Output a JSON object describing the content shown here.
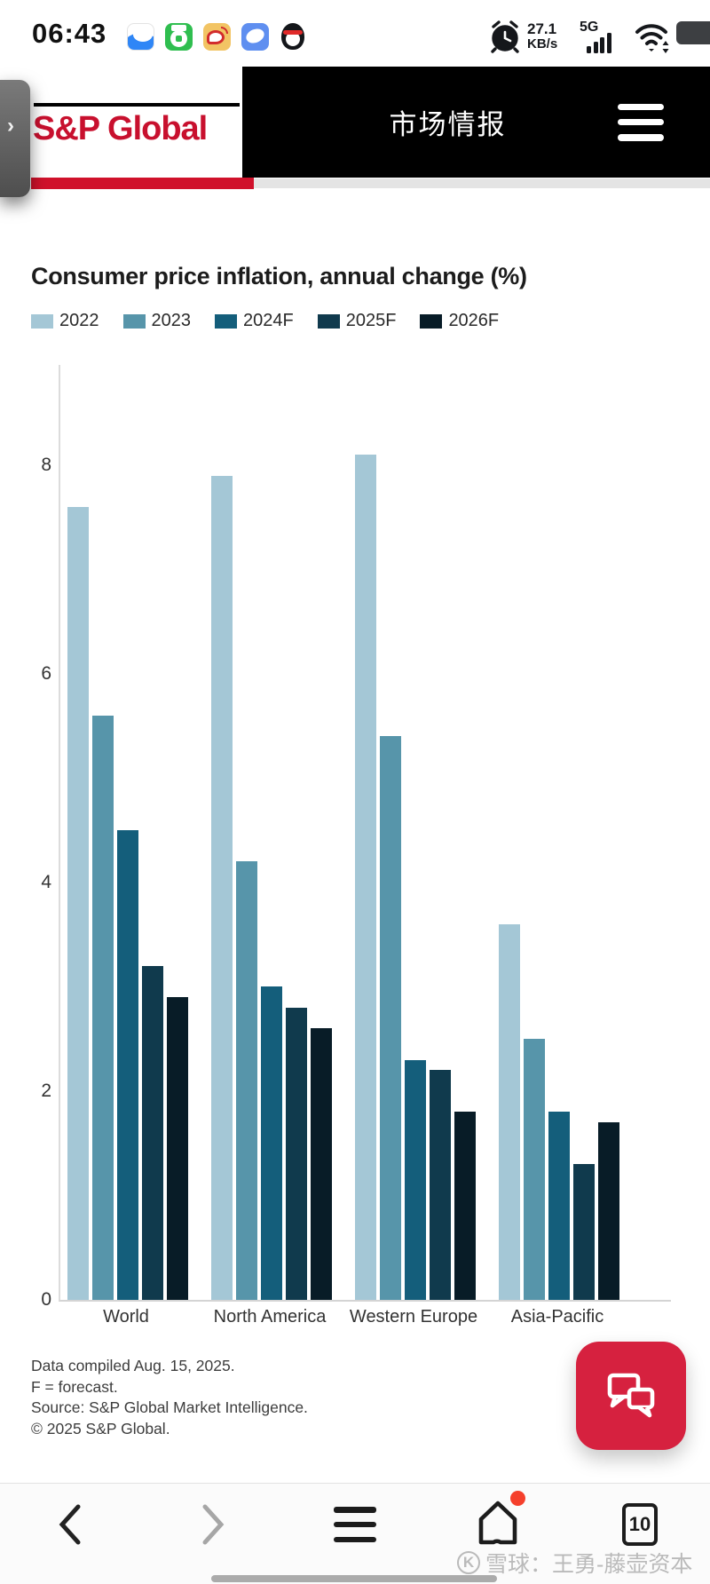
{
  "status_bar": {
    "time": "06:43",
    "net_speed_value": "27.1",
    "net_speed_unit": "KB/s",
    "network_type": "5G",
    "app_icons": [
      "netdisk-app-icon",
      "sports-app-icon",
      "weibo-app-icon",
      "browser-app-icon",
      "qq-app-icon"
    ]
  },
  "header": {
    "logo": "S&P Global",
    "title": "市场情报",
    "brand_red": "#c8102e",
    "progress_red": "#d0112b"
  },
  "chart_data": {
    "type": "bar",
    "title": "Consumer price inflation, annual change (%)",
    "categories": [
      "World",
      "North America",
      "Western Europe",
      "Asia-Pacific"
    ],
    "series": [
      {
        "name": "2022",
        "color": "#a4c7d6",
        "values": [
          7.6,
          7.9,
          8.1,
          3.6
        ]
      },
      {
        "name": "2023",
        "color": "#5795aa",
        "values": [
          5.6,
          4.2,
          5.4,
          2.5
        ]
      },
      {
        "name": "2024F",
        "color": "#145e7b",
        "values": [
          4.5,
          3.0,
          2.3,
          1.8
        ]
      },
      {
        "name": "2025F",
        "color": "#103a4d",
        "values": [
          3.2,
          2.8,
          2.2,
          1.3
        ]
      },
      {
        "name": "2026F",
        "color": "#081c27",
        "values": [
          2.9,
          2.6,
          1.8,
          1.7
        ]
      }
    ],
    "ylim": [
      0,
      9
    ],
    "yticks": [
      0,
      2,
      4,
      6,
      8
    ],
    "grid": "off",
    "legend_position": "top-left"
  },
  "footnotes": {
    "line1": "Data compiled Aug. 15, 2025.",
    "line2": "F = forecast.",
    "line3": "Source: S&P Global Market Intelligence.",
    "line4": "© 2025 S&P Global."
  },
  "nav": {
    "tabs_count": "10"
  },
  "watermark": {
    "source": "雪球：王勇-藤壶资本"
  }
}
